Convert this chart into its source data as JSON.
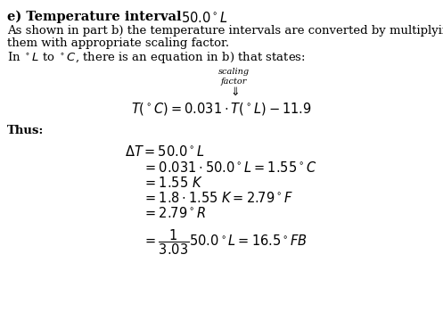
{
  "title_bold": "e) Temperature interval ",
  "title_math": "$50.0^\\circ L$",
  "para1_line1": "As shown in part b) the temperature intervals are converted by multiplying",
  "para1_line2": "them with appropriate scaling factor.",
  "para1_line3": "In $^\\circ L$ to $^\\circ C$, there is an equation in b) that states:",
  "scaling_label1": "scaling",
  "scaling_label2": "factor",
  "equation_main": "$T(^\\circ C) = 0.031 \\cdot T(^\\circ L) - 11.9$",
  "thus": "Thus:",
  "calc1": "$\\Delta T = 50.0^\\circ L$",
  "calc2": "$= 0.031 \\cdot 50.0^\\circ L = 1.55^\\circ C$",
  "calc3": "$= 1.55\\ K$",
  "calc4": "$= 1.8 \\cdot 1.55\\ K = 2.79^\\circ F$",
  "calc5": "$= 2.79^\\circ R$",
  "calc6": "$= \\dfrac{1}{3.03}50.0^\\circ L = 16.5^\\circ FB$",
  "bg_color": "#ffffff",
  "text_color": "#000000",
  "fs_title": 10.5,
  "fs_body": 9.5,
  "fs_math": 10.5,
  "fs_small": 7.0
}
